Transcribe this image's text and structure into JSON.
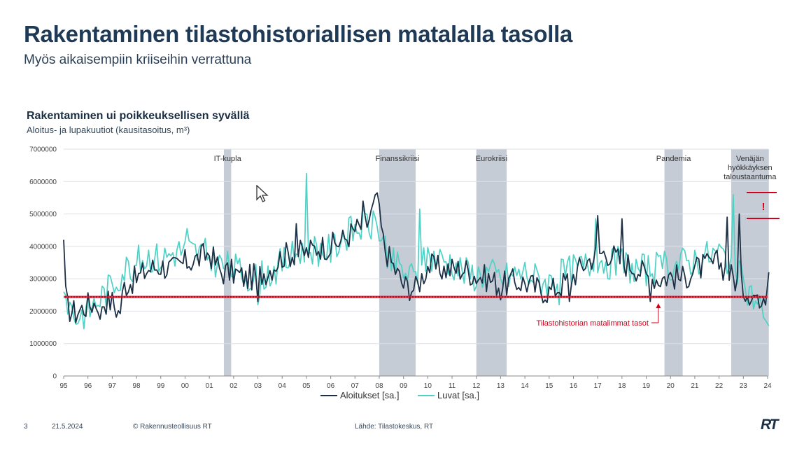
{
  "slide": {
    "title": "Rakentaminen tilastohistoriallisen matalalla tasolla",
    "subtitle": "Myös aikaisempiin kriiseihin verrattuna"
  },
  "footer": {
    "page_number": "3",
    "date": "21.5.2024",
    "copyright": "© Rakennusteollisuus RT",
    "source": "Lähde: Tilastokeskus, RT",
    "logo": "RT"
  },
  "colors": {
    "aloitukset": "#1c2f45",
    "luvat": "#4fd1c5",
    "crisis_band": "#c5ccd6",
    "low_line": "#d0021b",
    "grid": "#dde1e6"
  },
  "chart_data": {
    "type": "line",
    "title": "Rakentaminen ui poikkeuksellisen syvällä",
    "subtitle": "Aloitus- ja lupakuutiot (kausitasoitus, m³)",
    "y_ticks": [
      "7000000",
      "6000000",
      "5000000",
      "4000000",
      "3000000",
      "2000000",
      "1000000",
      "0"
    ],
    "ylim": [
      0,
      7000000
    ],
    "x_ticks": [
      "95",
      "96",
      "97",
      "98",
      "99",
      "00",
      "01",
      "02",
      "03",
      "04",
      "05",
      "06",
      "07",
      "08",
      "09",
      "10",
      "11",
      "12",
      "13",
      "14",
      "15",
      "16",
      "17",
      "18",
      "19",
      "20",
      "21",
      "22",
      "23",
      "24"
    ],
    "xlim": [
      1995,
      2024
    ],
    "grid": true,
    "legend_position": "bottom",
    "series": [
      {
        "name": "Aloitukset [sa.]",
        "anchors": [
          [
            1995.0,
            4200000
          ],
          [
            1995.1,
            2100000
          ],
          [
            1995.5,
            1950000
          ],
          [
            1996.0,
            2200000
          ],
          [
            1996.5,
            2300000
          ],
          [
            1997.0,
            2300000
          ],
          [
            1997.3,
            1900000
          ],
          [
            1997.5,
            2800000
          ],
          [
            1998.0,
            3000000
          ],
          [
            1998.5,
            3300000
          ],
          [
            1999.0,
            3400000
          ],
          [
            1999.5,
            3300000
          ],
          [
            2000.0,
            3500000
          ],
          [
            2000.5,
            3600000
          ],
          [
            2001.0,
            3800000
          ],
          [
            2001.5,
            3200000
          ],
          [
            2002.0,
            3200000
          ],
          [
            2002.5,
            3000000
          ],
          [
            2003.0,
            3100000
          ],
          [
            2003.5,
            3300000
          ],
          [
            2004.0,
            3700000
          ],
          [
            2004.5,
            3800000
          ],
          [
            2005.0,
            3800000
          ],
          [
            2005.5,
            4000000
          ],
          [
            2006.0,
            4000000
          ],
          [
            2006.5,
            4200000
          ],
          [
            2007.0,
            4500000
          ],
          [
            2007.5,
            4700000
          ],
          [
            2007.9,
            5400000
          ],
          [
            2008.2,
            4000000
          ],
          [
            2008.5,
            3500000
          ],
          [
            2009.0,
            2800000
          ],
          [
            2009.5,
            2700000
          ],
          [
            2010.0,
            3400000
          ],
          [
            2010.5,
            3300000
          ],
          [
            2011.0,
            3300000
          ],
          [
            2011.5,
            3300000
          ],
          [
            2012.0,
            3100000
          ],
          [
            2012.5,
            3000000
          ],
          [
            2013.0,
            2800000
          ],
          [
            2013.5,
            2900000
          ],
          [
            2014.0,
            2900000
          ],
          [
            2014.5,
            2700000
          ],
          [
            2015.0,
            2600000
          ],
          [
            2015.5,
            2800000
          ],
          [
            2016.0,
            3100000
          ],
          [
            2016.5,
            3500000
          ],
          [
            2017.0,
            3800000
          ],
          [
            2017.5,
            3800000
          ],
          [
            2018.0,
            3500000
          ],
          [
            2018.5,
            3400000
          ],
          [
            2019.0,
            3100000
          ],
          [
            2019.5,
            3000000
          ],
          [
            2020.0,
            3100000
          ],
          [
            2020.5,
            3000000
          ],
          [
            2021.0,
            3300000
          ],
          [
            2021.5,
            3400000
          ],
          [
            2022.0,
            3500000
          ],
          [
            2022.5,
            3100000
          ],
          [
            2023.0,
            2700000
          ],
          [
            2023.5,
            2500000
          ],
          [
            2024.0,
            2600000
          ],
          [
            2024.05,
            3200000
          ]
        ],
        "peaks": [
          [
            2004.6,
            4700000
          ],
          [
            2007.3,
            5400000
          ],
          [
            2007.9,
            5650000
          ],
          [
            2017.0,
            4950000
          ],
          [
            2018.0,
            4850000
          ],
          [
            2022.3,
            4900000
          ],
          [
            2022.8,
            5000000
          ]
        ],
        "troughs": [
          [
            1996.5,
            1750000
          ],
          [
            2003.0,
            2300000
          ],
          [
            2013.0,
            2350000
          ],
          [
            2015.8,
            2300000
          ],
          [
            2019.2,
            2300000
          ],
          [
            2023.7,
            2100000
          ]
        ]
      },
      {
        "name": "Luvat [sa.]",
        "anchors": [
          [
            1995.0,
            2600000
          ],
          [
            1995.5,
            1800000
          ],
          [
            1996.0,
            2000000
          ],
          [
            1996.5,
            2400000
          ],
          [
            1997.0,
            2800000
          ],
          [
            1997.5,
            3300000
          ],
          [
            1998.0,
            3500000
          ],
          [
            1998.5,
            3700000
          ],
          [
            1999.0,
            3600000
          ],
          [
            1999.5,
            3800000
          ],
          [
            2000.0,
            3900000
          ],
          [
            2000.5,
            3800000
          ],
          [
            2001.0,
            3700000
          ],
          [
            2001.5,
            3400000
          ],
          [
            2002.0,
            3300000
          ],
          [
            2002.5,
            3100000
          ],
          [
            2003.0,
            3000000
          ],
          [
            2003.5,
            3200000
          ],
          [
            2004.0,
            3500000
          ],
          [
            2004.5,
            3700000
          ],
          [
            2005.0,
            4000000
          ],
          [
            2005.5,
            3900000
          ],
          [
            2006.0,
            3900000
          ],
          [
            2006.5,
            4300000
          ],
          [
            2007.0,
            4500000
          ],
          [
            2007.5,
            4700000
          ],
          [
            2008.0,
            4500000
          ],
          [
            2008.5,
            3500000
          ],
          [
            2009.0,
            3200000
          ],
          [
            2009.5,
            3000000
          ],
          [
            2010.0,
            3700000
          ],
          [
            2010.5,
            3600000
          ],
          [
            2011.0,
            3500000
          ],
          [
            2011.5,
            3200000
          ],
          [
            2012.0,
            3100000
          ],
          [
            2012.5,
            3200000
          ],
          [
            2013.0,
            3000000
          ],
          [
            2013.5,
            3100000
          ],
          [
            2014.0,
            3200000
          ],
          [
            2014.5,
            3000000
          ],
          [
            2015.0,
            2900000
          ],
          [
            2015.5,
            3100000
          ],
          [
            2016.0,
            3300000
          ],
          [
            2016.5,
            3400000
          ],
          [
            2017.0,
            3600000
          ],
          [
            2017.5,
            3500000
          ],
          [
            2018.0,
            3500000
          ],
          [
            2018.5,
            3300000
          ],
          [
            2019.0,
            3300000
          ],
          [
            2019.5,
            3300000
          ],
          [
            2020.0,
            3400000
          ],
          [
            2020.5,
            3500000
          ],
          [
            2021.0,
            3600000
          ],
          [
            2021.5,
            3700000
          ],
          [
            2022.0,
            3800000
          ],
          [
            2022.5,
            3600000
          ],
          [
            2023.0,
            2800000
          ],
          [
            2023.5,
            2300000
          ],
          [
            2024.0,
            2000000
          ],
          [
            2024.05,
            1550000
          ]
        ],
        "peaks": [
          [
            2000.1,
            4550000
          ],
          [
            2005.0,
            6250000
          ],
          [
            2007.8,
            4900000
          ],
          [
            2009.7,
            5150000
          ],
          [
            2016.9,
            4850000
          ],
          [
            2022.6,
            5600000
          ]
        ],
        "troughs": [
          [
            1995.5,
            1600000
          ],
          [
            2003.0,
            2200000
          ],
          [
            2015.4,
            2200000
          ],
          [
            2023.8,
            1800000
          ],
          [
            2024.05,
            1550000
          ]
        ]
      }
    ],
    "crisis_bands": [
      {
        "label": "IT-kupla",
        "start": 2001.6,
        "end": 2001.9
      },
      {
        "label": "Finanssikriisi",
        "start": 2008.0,
        "end": 2009.5
      },
      {
        "label": "Eurokriisi",
        "start": 2012.0,
        "end": 2013.25
      },
      {
        "label": "Pandemia",
        "start": 2019.75,
        "end": 2020.5
      },
      {
        "label_lines": [
          "Venäjän",
          "hyökkäyksen",
          "taloustaantuma"
        ],
        "start": 2022.5,
        "end": 2024.05
      }
    ],
    "reference_line": {
      "value": 2440000,
      "label": "Tilastohistorian matalimmat tasot",
      "arrow_x": 2019.5
    },
    "alert_mark": "!"
  }
}
